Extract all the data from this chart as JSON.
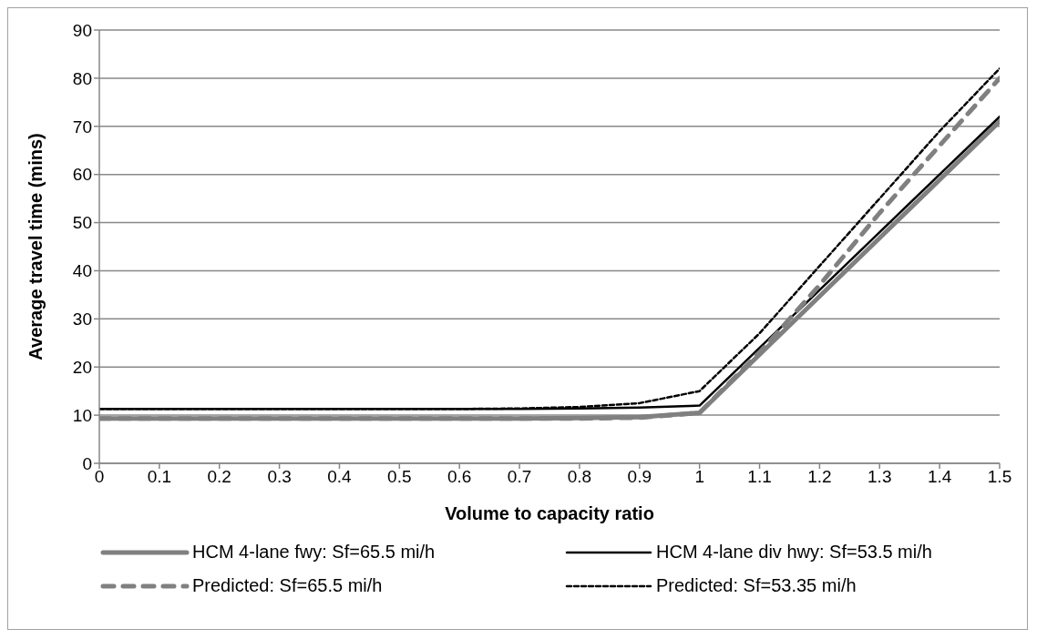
{
  "chart_data": {
    "type": "line",
    "xlabel": "Volume to capacity ratio",
    "ylabel": "Average travel time (mins)",
    "x": [
      0,
      0.1,
      0.2,
      0.3,
      0.4,
      0.5,
      0.6,
      0.7,
      0.8,
      0.9,
      1.0,
      1.1,
      1.2,
      1.3,
      1.4,
      1.5
    ],
    "xlim": [
      0,
      1.5
    ],
    "xticks": [
      0,
      0.1,
      0.2,
      0.3,
      0.4,
      0.5,
      0.6,
      0.7,
      0.8,
      0.9,
      1,
      1.1,
      1.2,
      1.3,
      1.4,
      1.5
    ],
    "ylim": [
      0,
      90
    ],
    "yticks": [
      0,
      10,
      20,
      30,
      40,
      50,
      60,
      70,
      80,
      90
    ],
    "grid": "y",
    "legend": "bottom",
    "marker": "none",
    "series": [
      {
        "name": "HCM 4-lane fwy: Sf=65.5 mi/h",
        "color": "#808080",
        "line_style": "solid",
        "values": [
          9.3,
          9.3,
          9.3,
          9.3,
          9.3,
          9.3,
          9.3,
          9.3,
          9.4,
          9.6,
          10.5,
          22.6,
          34.7,
          46.8,
          58.9,
          71
        ]
      },
      {
        "name": "HCM 4-lane div hwy: Sf=53.5 mi/h",
        "color": "#000000",
        "line_style": "solid",
        "values": [
          11.3,
          11.3,
          11.3,
          11.3,
          11.3,
          11.3,
          11.3,
          11.3,
          11.4,
          11.6,
          12,
          24,
          36,
          48,
          60,
          72
        ]
      },
      {
        "name": "Predicted: Sf=65.5 mi/h",
        "color": "#808080",
        "line_style": "dashed",
        "values": [
          9.3,
          9.3,
          9.3,
          9.3,
          9.3,
          9.3,
          9.3,
          9.3,
          9.3,
          9.5,
          10.5,
          23,
          37,
          52,
          66,
          80
        ]
      },
      {
        "name": "Predicted: Sf=53.35 mi/h",
        "color": "#000000",
        "line_style": "dotted",
        "values": [
          11.3,
          11.3,
          11.3,
          11.3,
          11.3,
          11.3,
          11.3,
          11.4,
          11.7,
          12.5,
          15,
          27,
          41,
          55,
          69,
          82
        ]
      }
    ]
  }
}
